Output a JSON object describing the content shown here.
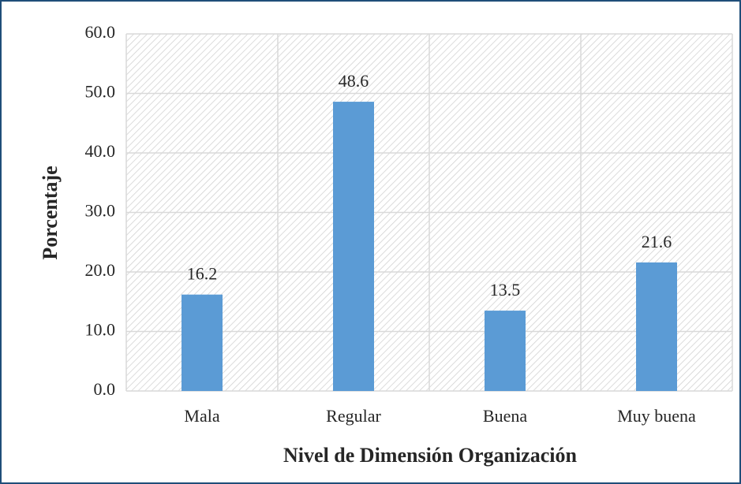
{
  "chart_data": {
    "type": "bar",
    "categories": [
      "Mala",
      "Regular",
      "Buena",
      "Muy buena"
    ],
    "values": [
      16.2,
      48.6,
      13.5,
      21.6
    ],
    "color": "#5b9bd5",
    "ylabel": "Porcentaje",
    "xlabel": "Nivel de Dimensión Organización",
    "ylim": [
      0,
      60
    ],
    "yticks": [
      {
        "value": 0,
        "label": "0.0"
      },
      {
        "value": 10,
        "label": "10.0"
      },
      {
        "value": 20,
        "label": "20.0"
      },
      {
        "value": 30,
        "label": "30.0"
      },
      {
        "value": 40,
        "label": "40.0"
      },
      {
        "value": 50,
        "label": "50.0"
      },
      {
        "value": 60,
        "label": "60.0"
      }
    ],
    "grid": true
  }
}
